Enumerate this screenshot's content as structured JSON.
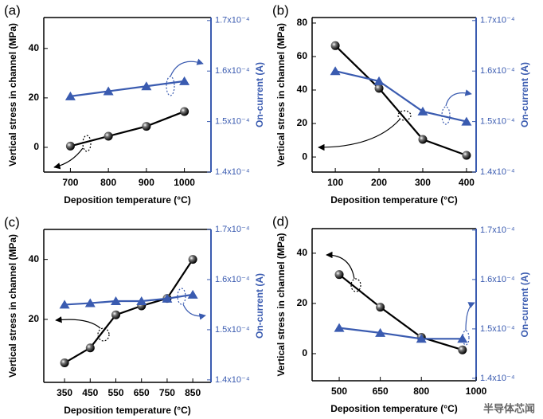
{
  "chart_data": [
    {
      "type": "line",
      "panel_label": "(a)",
      "xlabel": "Deposition temperature (°C)",
      "ylabel": "Vertical stress in channel (MPa)",
      "y2label": "On-current (A)",
      "x": [
        700,
        800,
        900,
        1000
      ],
      "xlim": [
        630,
        1070
      ],
      "xticks": [
        700,
        800,
        900,
        1000
      ],
      "ylim": [
        -10,
        52.5
      ],
      "yticks": [
        0,
        20,
        40
      ],
      "y2lim": [
        0.00014,
        0.0001706
      ],
      "y2ticks": [
        {
          "value": 0.00014,
          "label": "1.4x10⁻⁴"
        },
        {
          "value": 0.00015,
          "label": "1.5x10⁻⁴"
        },
        {
          "value": 0.00016,
          "label": "1.6x10⁻⁴"
        },
        {
          "value": 0.00017,
          "label": "1.7x10⁻⁴"
        }
      ],
      "series": [
        {
          "color": "#000000",
          "marker": "circle",
          "values": [
            0.5,
            4.5,
            8.5,
            14.5
          ]
        },
        {
          "color": "#3a5bb0",
          "marker": "triangle",
          "axis": "y2",
          "values": [
            0.000155,
            0.000156,
            0.000157,
            0.000158
          ]
        }
      ]
    },
    {
      "type": "line",
      "panel_label": "(b)",
      "xlabel": "Deposition temperature (°C)",
      "ylabel": "Vertical stress in channel (MPa)",
      "y2label": "On-current (A)",
      "x": [
        100,
        200,
        300,
        400
      ],
      "xlim": [
        47,
        422
      ],
      "xticks": [
        100,
        200,
        300,
        400
      ],
      "ylim": [
        -9,
        83.3
      ],
      "yticks": [
        0,
        20,
        40,
        60,
        80
      ],
      "y2lim": [
        0.00014,
        0.0001706
      ],
      "y2ticks": [
        {
          "value": 0.00014,
          "label": "1.4x10⁻⁴"
        },
        {
          "value": 0.00015,
          "label": "1.5x10⁻⁴"
        },
        {
          "value": 0.00016,
          "label": "1.6x10⁻⁴"
        },
        {
          "value": 0.00017,
          "label": "1.7x10⁻⁴"
        }
      ],
      "series": [
        {
          "color": "#000000",
          "marker": "circle",
          "values": [
            66.5,
            41,
            10.5,
            1
          ]
        },
        {
          "color": "#3a5bb0",
          "marker": "triangle",
          "axis": "y2",
          "values": [
            0.00016,
            0.000158,
            0.000152,
            0.00015
          ]
        }
      ]
    },
    {
      "type": "line",
      "panel_label": "(c)",
      "xlabel": "Deposition temperature (°C)",
      "ylabel": "Vertical stress in channel (MPa)",
      "y2label": "On-current (A)",
      "x": [
        350,
        450,
        550,
        650,
        750,
        850
      ],
      "xlim": [
        269,
        921
      ],
      "xticks": [
        350,
        450,
        550,
        650,
        750,
        850
      ],
      "ylim": [
        -1,
        50
      ],
      "yticks": [
        20,
        40
      ],
      "y2lim": [
        0.0001395,
        0.00017
      ],
      "y2ticks": [
        {
          "value": 0.00014,
          "label": "1.4x10⁻⁴"
        },
        {
          "value": 0.00015,
          "label": "1.5x10⁻⁴"
        },
        {
          "value": 0.00016,
          "label": "1.6x10⁻⁴"
        },
        {
          "value": 0.00017,
          "label": "1.7x10⁻⁴"
        }
      ],
      "series": [
        {
          "color": "#000000",
          "marker": "circle",
          "values": [
            5.5,
            10.5,
            21.5,
            24.5,
            27,
            40
          ]
        },
        {
          "color": "#3a5bb0",
          "marker": "triangle",
          "axis": "y2",
          "values": [
            0.000155,
            0.0001553,
            0.0001557,
            0.0001557,
            0.0001562,
            0.000157
          ]
        }
      ]
    },
    {
      "type": "line",
      "panel_label": "(d)",
      "xlabel": "Deposition temperature (°C)",
      "ylabel": "Vertical stress in channel (MPa)",
      "y2label": "On-current (A)",
      "x": [
        500,
        650,
        800,
        950
      ],
      "xlim": [
        401,
        1000
      ],
      "xticks": [
        500,
        650,
        800,
        1000
      ],
      "ylim": [
        -10.8,
        49.8
      ],
      "yticks": [
        0,
        20,
        40
      ],
      "y2lim": [
        0.0001395,
        0.0001703
      ],
      "y2ticks": [
        {
          "value": 0.00014,
          "label": "1.4x10⁻⁴"
        },
        {
          "value": 0.00015,
          "label": "1.5x10⁻⁴"
        },
        {
          "value": 0.00016,
          "label": "1.6x10⁻⁴"
        },
        {
          "value": 0.00017,
          "label": "1.7x10⁻⁴"
        }
      ],
      "series": [
        {
          "color": "#000000",
          "marker": "circle",
          "values": [
            31.5,
            18.5,
            6.5,
            1.5
          ]
        },
        {
          "color": "#3a5bb0",
          "marker": "triangle",
          "axis": "y2",
          "values": [
            0.0001502,
            0.0001492,
            0.000148,
            0.000148
          ]
        }
      ]
    }
  ],
  "watermark": "半导体芯闻"
}
